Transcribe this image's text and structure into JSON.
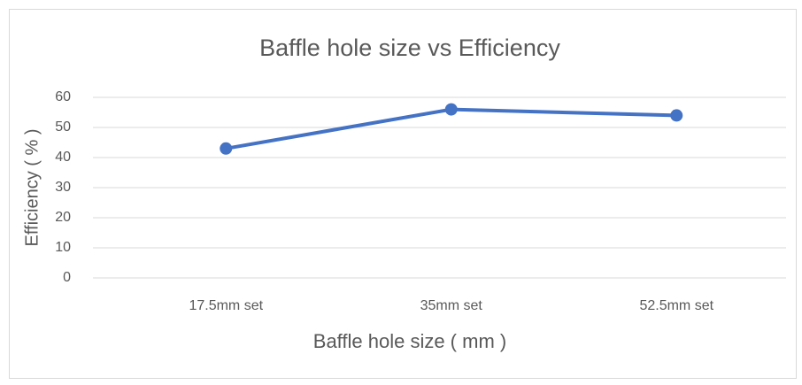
{
  "chart_data": {
    "type": "line",
    "title": "Baffle hole size vs Efficiency",
    "x_label": "Baffle hole size ( mm )",
    "y_label": "Efficiency ( % )",
    "categories": [
      "17.5mm set",
      "35mm set",
      "52.5mm set"
    ],
    "series": [
      {
        "name": "Efficiency",
        "color": "#4472c4",
        "values": [
          43,
          56,
          54
        ]
      }
    ],
    "ylim": [
      0,
      60
    ],
    "yticks": [
      0,
      10,
      20,
      30,
      40,
      50,
      60
    ],
    "grid": true
  }
}
